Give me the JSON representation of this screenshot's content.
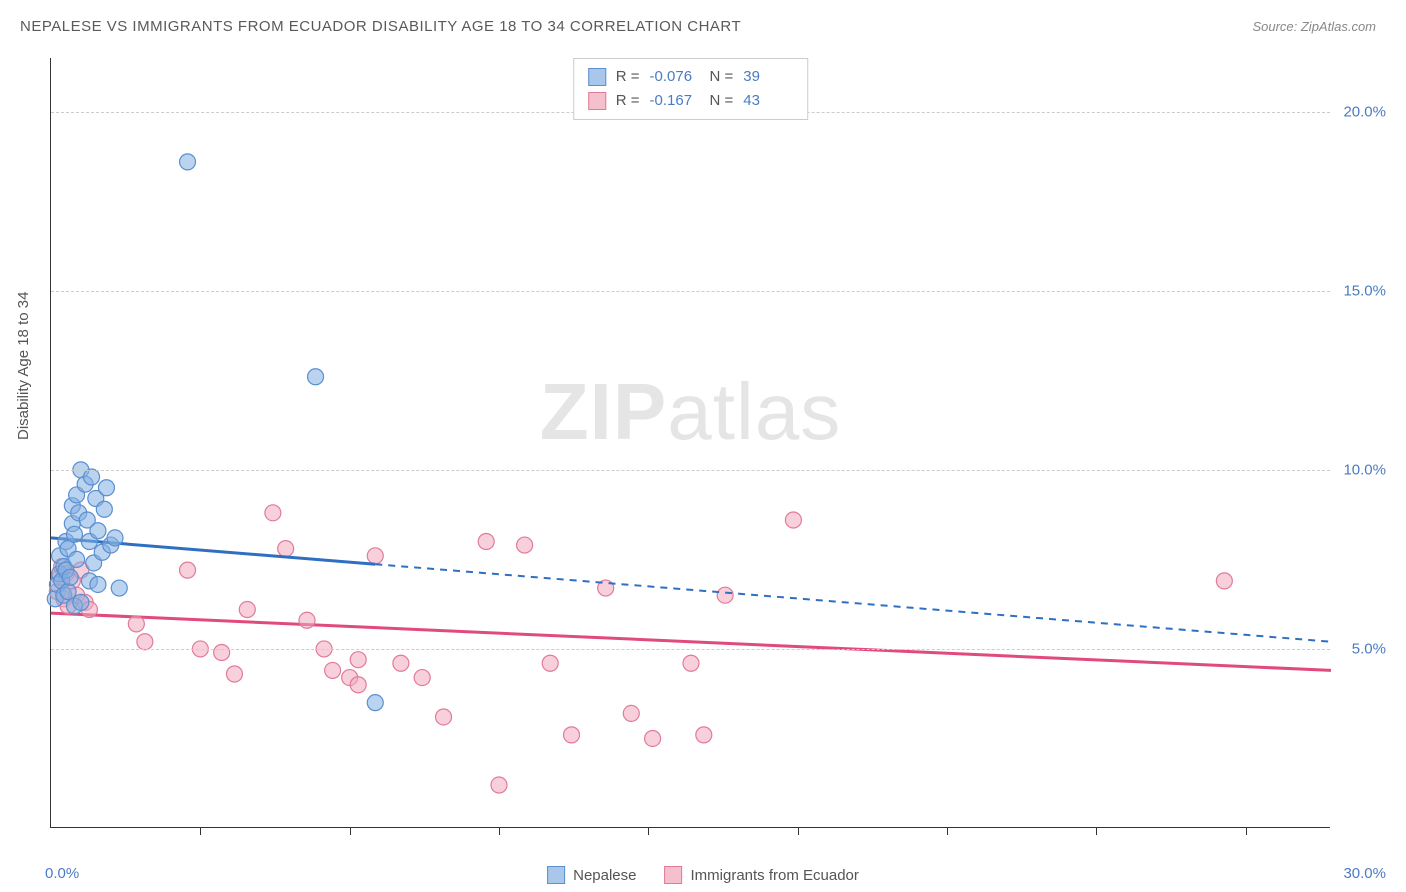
{
  "header": {
    "title": "NEPALESE VS IMMIGRANTS FROM ECUADOR DISABILITY AGE 18 TO 34 CORRELATION CHART",
    "source": "Source: ZipAtlas.com"
  },
  "watermark": {
    "zip": "ZIP",
    "atlas": "atlas"
  },
  "axes": {
    "ylabel": "Disability Age 18 to 34",
    "y_ticks": [
      {
        "value": 5.0,
        "label": "5.0%"
      },
      {
        "value": 10.0,
        "label": "10.0%"
      },
      {
        "value": 15.0,
        "label": "15.0%"
      },
      {
        "value": 20.0,
        "label": "20.0%"
      }
    ],
    "x_min_label": "0.0%",
    "x_max_label": "30.0%",
    "x_min": 0.0,
    "x_max": 30.0,
    "y_min": 0.0,
    "y_max": 21.5,
    "x_tick_positions": [
      3.5,
      7.0,
      10.5,
      14.0,
      17.5,
      21.0,
      24.5,
      28.0
    ],
    "grid_color": "#cccccc",
    "axis_color": "#333333",
    "tick_label_color": "#4a7bc4",
    "label_color": "#555555",
    "label_fontsize": 15
  },
  "legend_top": {
    "rows": [
      {
        "swatch_fill": "#a9c7ea",
        "swatch_border": "#5b8fd0",
        "r_label": "R =",
        "r": "-0.076",
        "n_label": "N =",
        "n": "39"
      },
      {
        "swatch_fill": "#f5c0cd",
        "swatch_border": "#e27a9a",
        "r_label": "R =",
        "r": " -0.167",
        "n_label": "N =",
        "n": "43"
      }
    ]
  },
  "legend_bottom": {
    "items": [
      {
        "swatch_fill": "#a9c7ea",
        "swatch_border": "#5b8fd0",
        "label": "Nepalese"
      },
      {
        "swatch_fill": "#f5c0cd",
        "swatch_border": "#e27a9a",
        "label": "Immigrants from Ecuador"
      }
    ]
  },
  "series": {
    "nepalese": {
      "marker_fill": "rgba(130,175,225,0.55)",
      "marker_stroke": "#5b8fd0",
      "marker_radius": 8,
      "line_color": "#2f6fc2",
      "line_width": 3,
      "solid_end_x": 7.6,
      "dash_pattern": "7,6",
      "reg_start": {
        "x": 0.0,
        "y": 8.1
      },
      "reg_end": {
        "x": 30.0,
        "y": 5.2
      },
      "points": [
        [
          0.1,
          6.4
        ],
        [
          0.15,
          6.8
        ],
        [
          0.2,
          7.1
        ],
        [
          0.2,
          7.6
        ],
        [
          0.25,
          6.9
        ],
        [
          0.3,
          6.5
        ],
        [
          0.3,
          7.3
        ],
        [
          0.35,
          8.0
        ],
        [
          0.35,
          7.2
        ],
        [
          0.4,
          7.8
        ],
        [
          0.4,
          6.6
        ],
        [
          0.45,
          7.0
        ],
        [
          0.5,
          8.5
        ],
        [
          0.5,
          9.0
        ],
        [
          0.55,
          8.2
        ],
        [
          0.6,
          7.5
        ],
        [
          0.6,
          9.3
        ],
        [
          0.65,
          8.8
        ],
        [
          0.7,
          10.0
        ],
        [
          0.8,
          9.6
        ],
        [
          0.85,
          8.6
        ],
        [
          0.9,
          8.0
        ],
        [
          0.95,
          9.8
        ],
        [
          1.0,
          7.4
        ],
        [
          1.05,
          9.2
        ],
        [
          1.1,
          8.3
        ],
        [
          1.2,
          7.7
        ],
        [
          1.25,
          8.9
        ],
        [
          1.3,
          9.5
        ],
        [
          1.4,
          7.9
        ],
        [
          1.5,
          8.1
        ],
        [
          1.6,
          6.7
        ],
        [
          0.55,
          6.2
        ],
        [
          0.7,
          6.3
        ],
        [
          0.9,
          6.9
        ],
        [
          1.1,
          6.8
        ],
        [
          3.2,
          18.6
        ],
        [
          6.2,
          12.6
        ],
        [
          7.6,
          3.5
        ]
      ]
    },
    "ecuador": {
      "marker_fill": "rgba(240,170,190,0.55)",
      "marker_stroke": "#e27a9a",
      "marker_radius": 8,
      "line_color": "#e04b7b",
      "line_width": 3,
      "reg_start": {
        "x": 0.0,
        "y": 6.0
      },
      "reg_end": {
        "x": 30.0,
        "y": 4.4
      },
      "points": [
        [
          0.15,
          6.6
        ],
        [
          0.2,
          7.0
        ],
        [
          0.25,
          7.3
        ],
        [
          0.3,
          6.4
        ],
        [
          0.35,
          7.1
        ],
        [
          0.4,
          6.2
        ],
        [
          0.5,
          6.9
        ],
        [
          0.6,
          6.5
        ],
        [
          0.7,
          7.2
        ],
        [
          0.8,
          6.3
        ],
        [
          0.9,
          6.1
        ],
        [
          2.0,
          5.7
        ],
        [
          2.2,
          5.2
        ],
        [
          3.2,
          7.2
        ],
        [
          3.5,
          5.0
        ],
        [
          4.0,
          4.9
        ],
        [
          4.3,
          4.3
        ],
        [
          5.2,
          8.8
        ],
        [
          5.5,
          7.8
        ],
        [
          6.4,
          5.0
        ],
        [
          6.6,
          4.4
        ],
        [
          7.0,
          4.2
        ],
        [
          7.2,
          4.7
        ],
        [
          7.2,
          4.0
        ],
        [
          7.6,
          7.6
        ],
        [
          8.2,
          4.6
        ],
        [
          8.7,
          4.2
        ],
        [
          9.2,
          3.1
        ],
        [
          10.2,
          8.0
        ],
        [
          10.5,
          1.2
        ],
        [
          11.1,
          7.9
        ],
        [
          11.7,
          4.6
        ],
        [
          12.2,
          2.6
        ],
        [
          13.0,
          6.7
        ],
        [
          13.6,
          3.2
        ],
        [
          14.1,
          2.5
        ],
        [
          15.0,
          4.6
        ],
        [
          15.3,
          2.6
        ],
        [
          15.8,
          6.5
        ],
        [
          17.4,
          8.6
        ],
        [
          4.6,
          6.1
        ],
        [
          6.0,
          5.8
        ],
        [
          27.5,
          6.9
        ]
      ]
    }
  }
}
